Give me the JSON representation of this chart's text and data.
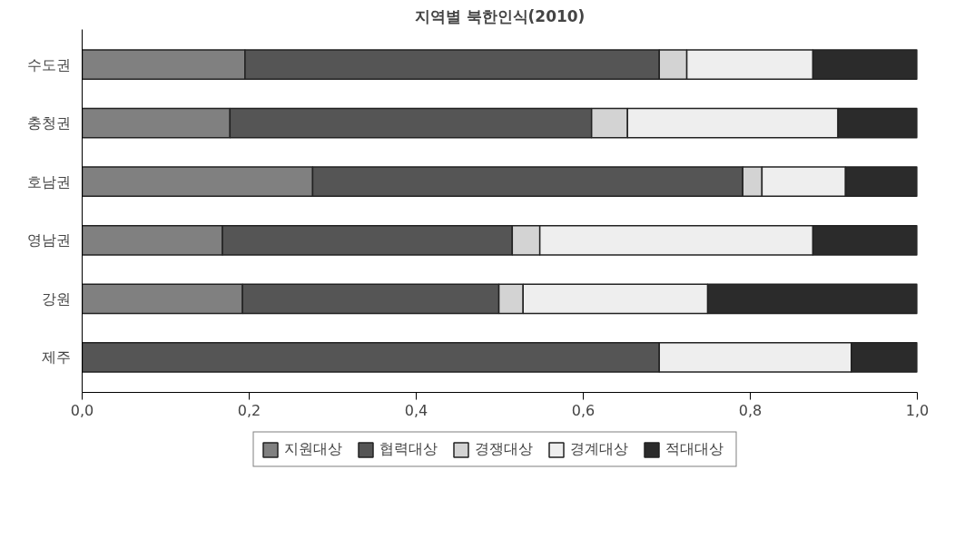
{
  "chart_data": {
    "type": "bar",
    "orientation": "horizontal",
    "stacked": true,
    "title": "지역별 북한인식(2010)",
    "categories": [
      "수도권",
      "충청권",
      "호남권",
      "영남권",
      "강원",
      "제주"
    ],
    "series": [
      {
        "name": "지원대상",
        "color": "#808080",
        "values": [
          0.195,
          0.177,
          0.276,
          0.168,
          0.192,
          0
        ]
      },
      {
        "name": "협력대상",
        "color": "#555555",
        "values": [
          0.496,
          0.433,
          0.515,
          0.347,
          0.307,
          0.691
        ]
      },
      {
        "name": "경쟁대상",
        "color": "#d3d3d3",
        "values": [
          0.033,
          0.043,
          0.023,
          0.033,
          0.029,
          0
        ]
      },
      {
        "name": "경계대상",
        "color": "#eeeeee",
        "values": [
          0.151,
          0.252,
          0.1,
          0.327,
          0.221,
          0.23
        ]
      },
      {
        "name": "적대대상",
        "color": "#2b2b2b",
        "values": [
          0.125,
          0.095,
          0.086,
          0.125,
          0.251,
          0.079
        ]
      }
    ],
    "xlim": [
      0,
      1
    ],
    "xticks": [
      {
        "value": 0,
        "label": "0,0"
      },
      {
        "value": 0.2,
        "label": "0,2"
      },
      {
        "value": 0.4,
        "label": "0,4"
      },
      {
        "value": 0.6,
        "label": "0,6"
      },
      {
        "value": 0.8,
        "label": "0,8"
      },
      {
        "value": 1,
        "label": "1,0"
      }
    ],
    "grid": false,
    "legend": "bottom"
  }
}
